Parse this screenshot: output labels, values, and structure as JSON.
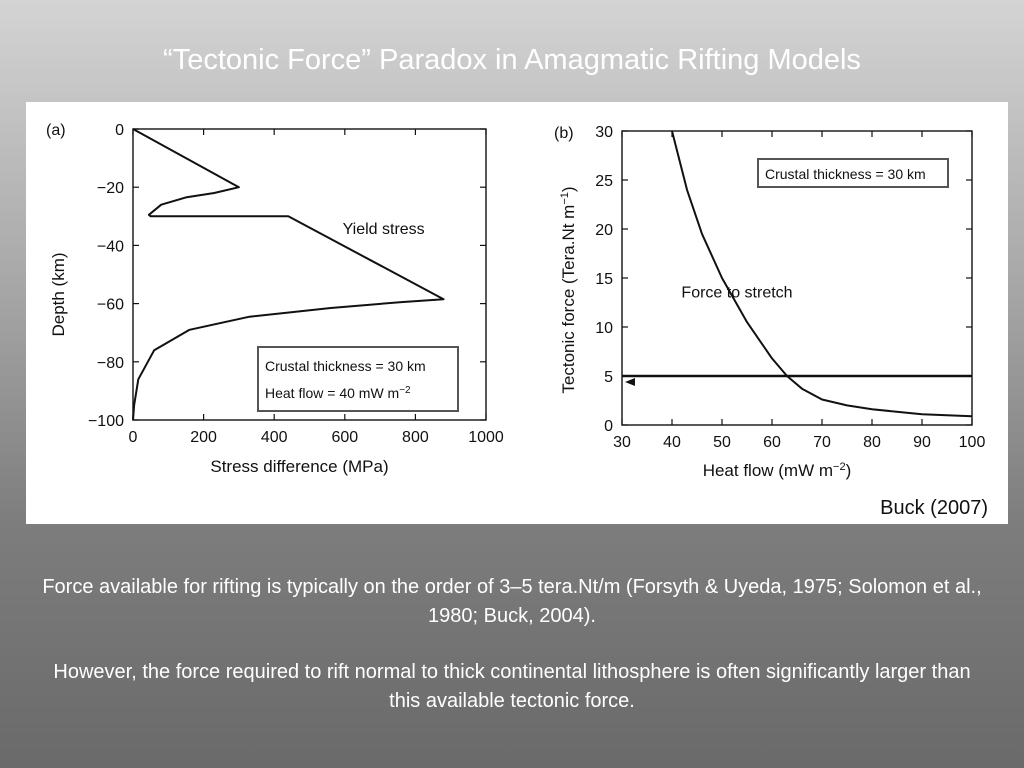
{
  "slide": {
    "title": "“Tectonic Force” Paradox in Amagmatic Rifting Models",
    "source": "Buck (2007)",
    "paragraphs": [
      "Force available for rifting is typically on the order of 3–5 tera.Nt/m (Forsyth & Uyeda, 1975; Solomon et al., 1980; Buck, 2004).",
      "However, the force required to rift normal to thick continental lithosphere is often significantly larger than this available tectonic force."
    ]
  },
  "chart_data": [
    {
      "type": "line",
      "panel_label": "(a)",
      "xlabel": "Stress difference (MPa)",
      "ylabel": "Depth (km)",
      "xlim": [
        0,
        1000
      ],
      "ylim": [
        -100,
        0
      ],
      "x_ticks": [
        0,
        200,
        400,
        600,
        800,
        1000
      ],
      "x_tick_labels": [
        "0",
        "200",
        "400",
        "600",
        "800",
        "1000"
      ],
      "y_ticks": [
        0,
        -20,
        -40,
        -60,
        -80,
        -100
      ],
      "y_tick_labels": [
        "0",
        "−20",
        "−40",
        "−60",
        "−80",
        "−100"
      ],
      "series": [
        {
          "name": "Yield stress",
          "x": [
            0,
            300,
            230,
            150,
            80,
            45,
            50,
            440,
            880,
            760,
            560,
            330,
            160,
            60,
            15,
            3,
            0
          ],
          "y": [
            0,
            -20,
            -22,
            -23.5,
            -26,
            -29.5,
            -30,
            -30,
            -58.5,
            -59.5,
            -61.5,
            -64.5,
            -69,
            -76,
            -86,
            -95,
            -100
          ]
        }
      ],
      "annotations": [
        {
          "text": "Yield stress",
          "x": 710,
          "y": -36
        }
      ],
      "legend_box": [
        "Crustal thickness = 30 km",
        "Heat flow = 40 mW m"
      ],
      "legend_sup": "−2",
      "grid": false
    },
    {
      "type": "line",
      "panel_label": "(b)",
      "xlabel": "Heat flow (mW m",
      "xlabel_sup": "−2",
      "ylabel": "Tectonic force (Tera.Nt m",
      "ylabel_sup": "−1",
      "xlim": [
        30,
        100
      ],
      "ylim": [
        0,
        30
      ],
      "x_ticks": [
        30,
        40,
        50,
        60,
        70,
        80,
        90,
        100
      ],
      "x_tick_labels": [
        "30",
        "40",
        "50",
        "60",
        "70",
        "80",
        "90",
        "100"
      ],
      "y_ticks": [
        0,
        5,
        10,
        15,
        20,
        25,
        30
      ],
      "y_tick_labels": [
        "0",
        "5",
        "10",
        "15",
        "20",
        "25",
        "30"
      ],
      "series": [
        {
          "name": "Force to stretch",
          "x": [
            40,
            43,
            46,
            50,
            55,
            60,
            63,
            66,
            70,
            75,
            80,
            90,
            100
          ],
          "y": [
            30,
            24,
            19.5,
            15,
            10.5,
            6.8,
            5,
            3.7,
            2.6,
            2.0,
            1.6,
            1.1,
            0.9
          ]
        },
        {
          "name": "",
          "x": [
            30,
            100
          ],
          "y": [
            5,
            5
          ]
        }
      ],
      "annotations": [
        {
          "text": "Force to stretch",
          "x": 53,
          "y": 13
        }
      ],
      "legend_box": [
        "Crustal thickness = 30 km"
      ],
      "grid": false
    }
  ]
}
